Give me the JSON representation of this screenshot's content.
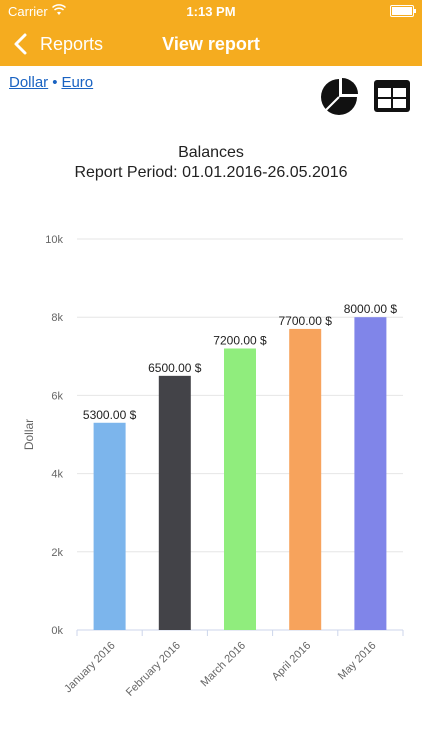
{
  "statusbar": {
    "carrier": "Carrier",
    "time": "1:13 PM"
  },
  "navbar": {
    "back_label": "Reports",
    "title": "View report"
  },
  "currency": {
    "dollar": "Dollar",
    "separator": "•",
    "euro": "Euro"
  },
  "icons": {
    "pie": "pie-chart-icon",
    "table": "table-grid-icon"
  },
  "chart_title": {
    "title": "Balances",
    "subtitle": "Report Period: 01.01.2016-26.05.2016"
  },
  "chart_data": {
    "type": "bar",
    "title": "Balances",
    "subtitle": "Report Period: 01.01.2016-26.05.2016",
    "categories": [
      "January 2016",
      "February 2016",
      "March 2016",
      "April 2016",
      "May 2016"
    ],
    "values": [
      5300,
      6500,
      7200,
      7700,
      8000
    ],
    "data_labels": [
      "5300.00 $",
      "6500.00 $",
      "7200.00 $",
      "7700.00 $",
      "8000.00 $"
    ],
    "colors": [
      "#7CB5EC",
      "#434348",
      "#90ED7D",
      "#F7A35C",
      "#8085E9"
    ],
    "ylabel": "Dollar",
    "xlabel": "",
    "ylim": [
      0,
      10000
    ],
    "yticks": [
      0,
      2000,
      4000,
      6000,
      8000,
      10000
    ],
    "ytick_labels": [
      "0k",
      "2k",
      "4k",
      "6k",
      "8k",
      "10k"
    ],
    "grid": true,
    "legend": "none"
  }
}
